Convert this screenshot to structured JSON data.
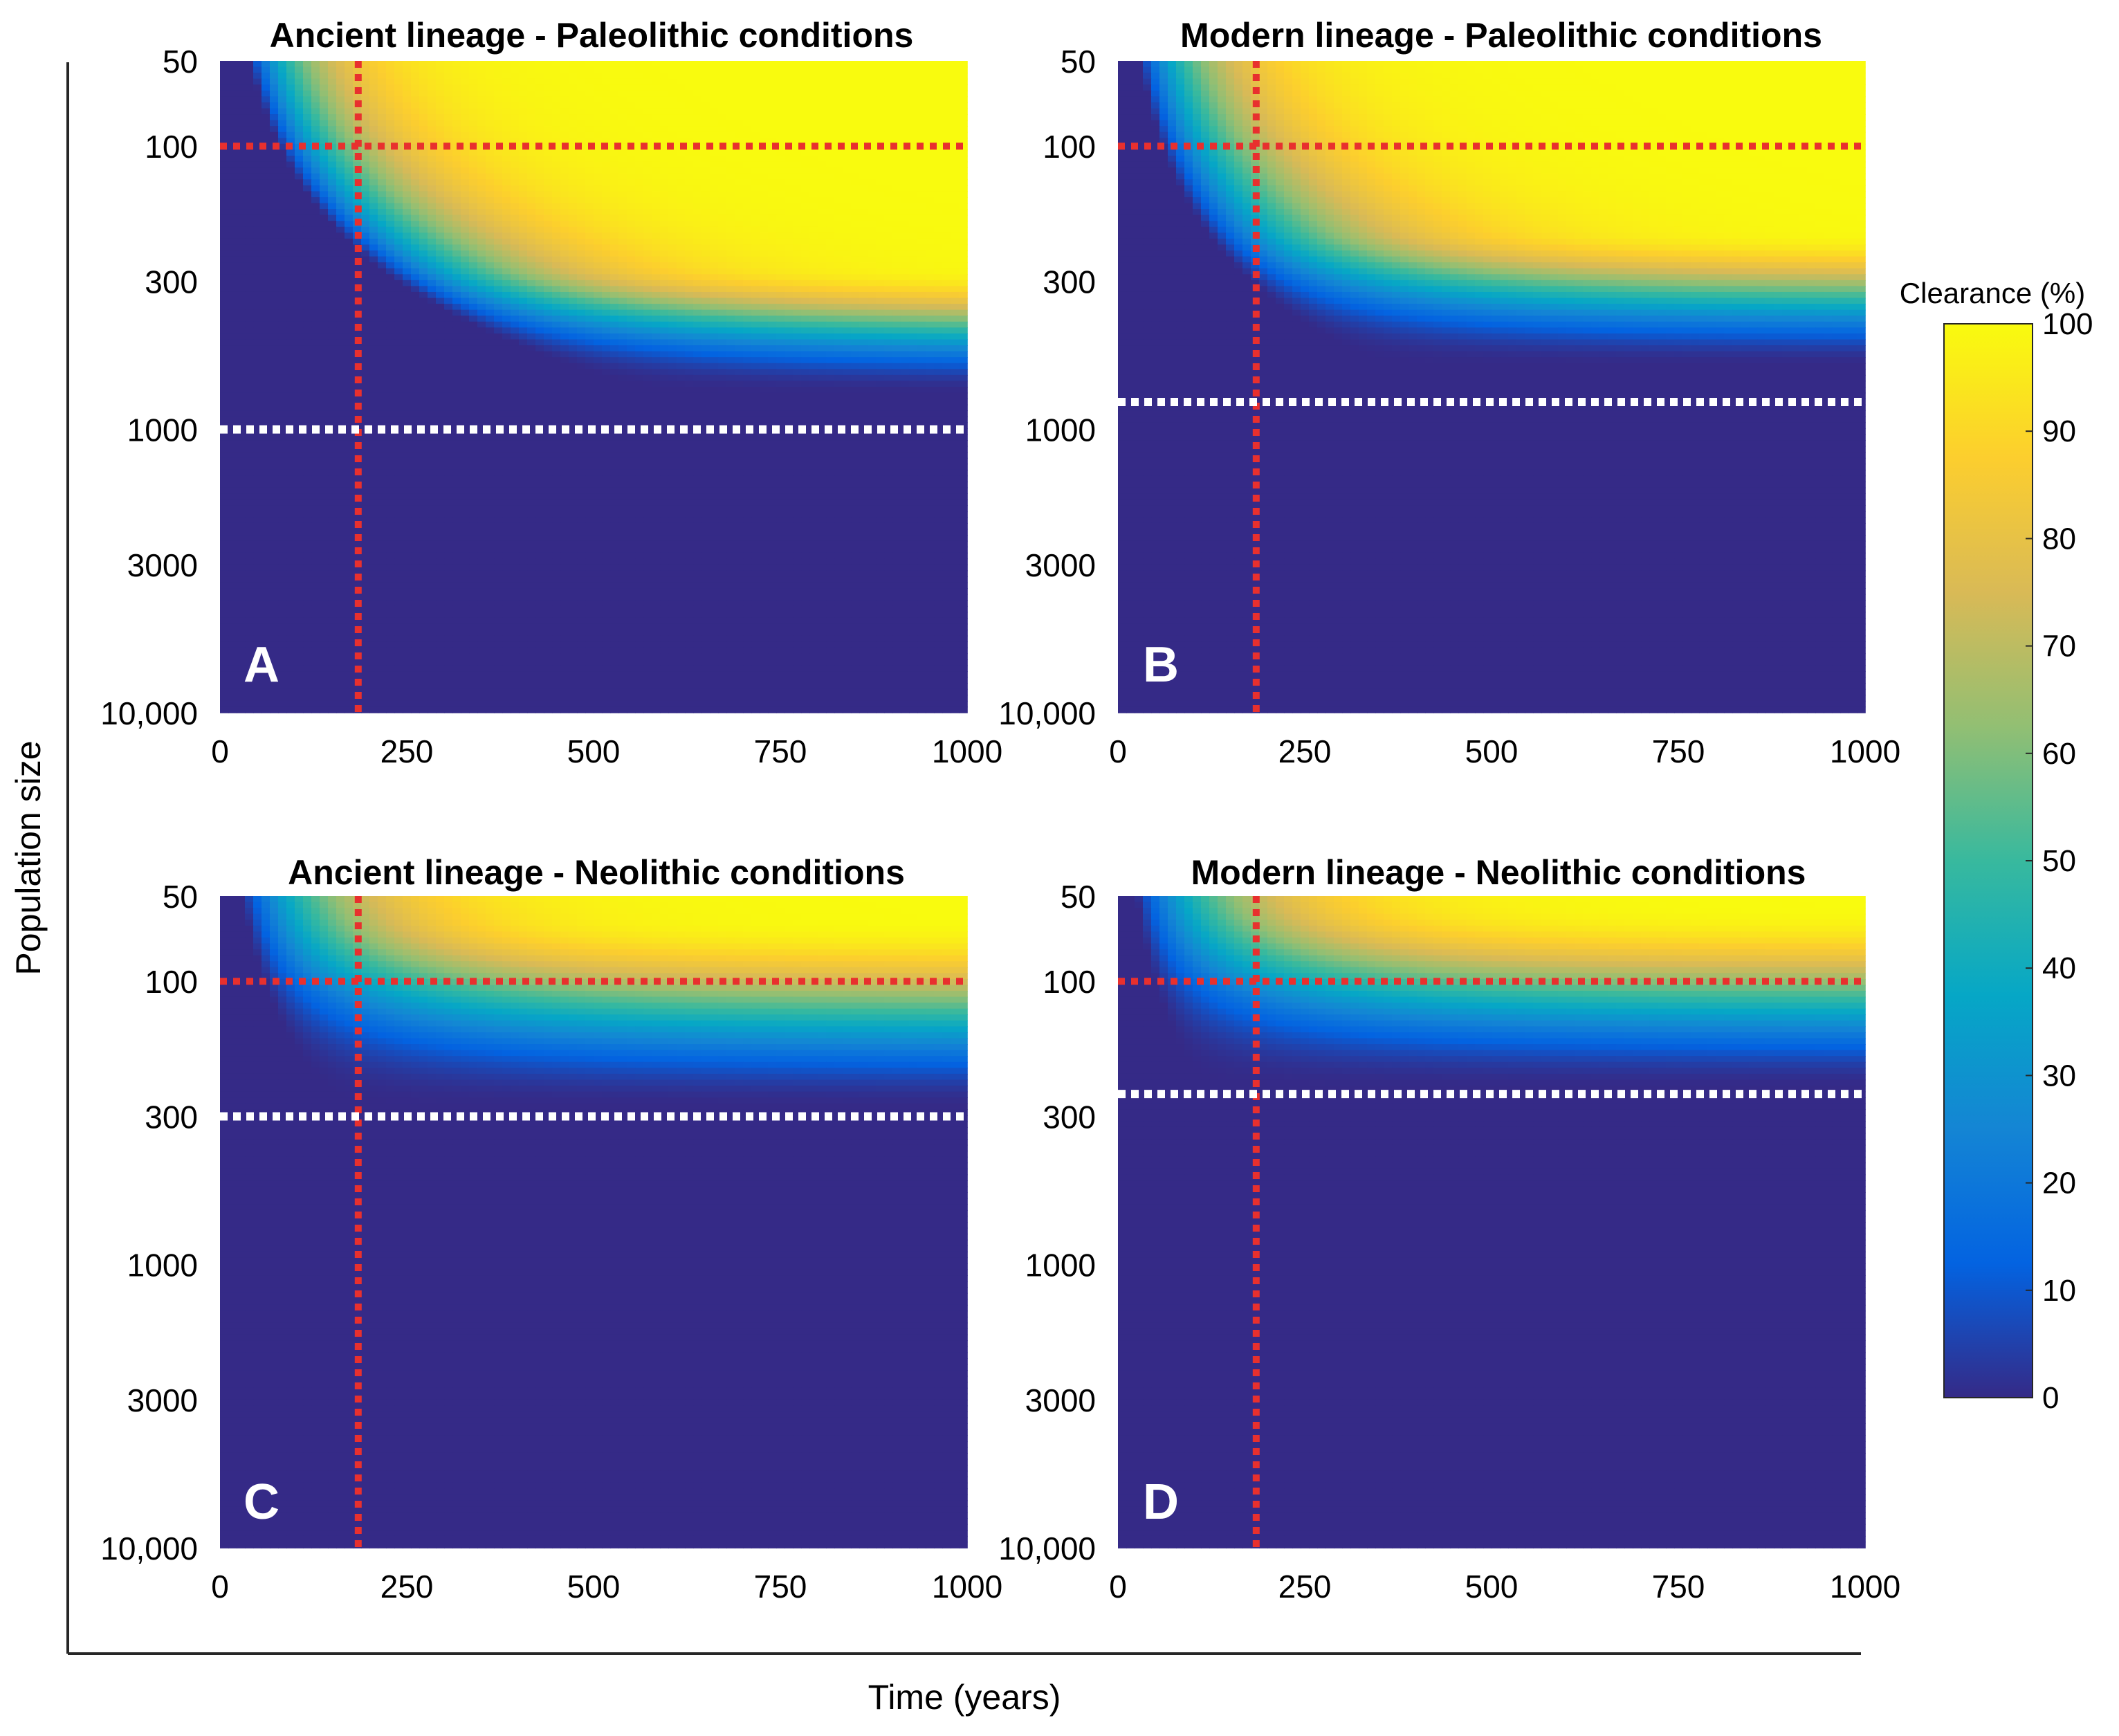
{
  "figure": {
    "ylabel": "Population size",
    "xlabel": "Time (years)",
    "colorbar": {
      "label": "Clearance (%)",
      "ticks": [
        "0",
        "10",
        "20",
        "30",
        "40",
        "50",
        "60",
        "70",
        "80",
        "90",
        "100"
      ],
      "range": [
        0,
        100
      ],
      "colormap": [
        "#352a87",
        "#0363e1",
        "#1485d4",
        "#06a7c6",
        "#38b99e",
        "#92bf73",
        "#d9ba56",
        "#fcce2e",
        "#f9fb0e"
      ]
    }
  },
  "chart_data": [
    {
      "type": "heatmap",
      "panel": "A",
      "title": "Ancient lineage - Paleolithic conditions",
      "xlabel": "Time (years)",
      "ylabel": "Population size",
      "x_ticks": [
        "0",
        "250",
        "500",
        "750",
        "1000"
      ],
      "y_ticks": [
        "50",
        "100",
        "300",
        "1000",
        "3000",
        "10,000"
      ],
      "xlim": [
        0,
        1000
      ],
      "ylim": [
        50,
        10000
      ],
      "yscale": "log",
      "red_vertical_line_x": 185,
      "red_horizontal_line_y": 100,
      "white_threshold_line_y": 1000,
      "clearance_band": {
        "full_clearance_below": 270,
        "half_clearance_at": 420,
        "zero_clearance_above": 750,
        "onset_years": 40
      }
    },
    {
      "type": "heatmap",
      "panel": "B",
      "title": "Modern lineage - Paleolithic conditions",
      "xlabel": "Time (years)",
      "ylabel": "Population size",
      "x_ticks": [
        "0",
        "250",
        "500",
        "750",
        "1000"
      ],
      "y_ticks": [
        "50",
        "100",
        "300",
        "1000",
        "3000",
        "10,000"
      ],
      "xlim": [
        0,
        1000
      ],
      "ylim": [
        50,
        10000
      ],
      "yscale": "log",
      "red_vertical_line_x": 185,
      "red_horizontal_line_y": 100,
      "white_threshold_line_y": 800,
      "clearance_band": {
        "full_clearance_below": 200,
        "half_clearance_at": 320,
        "zero_clearance_above": 600,
        "onset_years": 30
      }
    },
    {
      "type": "heatmap",
      "panel": "C",
      "title": "Ancient lineage - Neolithic conditions",
      "xlabel": "Time (years)",
      "ylabel": "Population size",
      "x_ticks": [
        "0",
        "250",
        "500",
        "750",
        "1000"
      ],
      "y_ticks": [
        "50",
        "100",
        "300",
        "1000",
        "3000",
        "10,000"
      ],
      "xlim": [
        0,
        1000
      ],
      "ylim": [
        50,
        10000
      ],
      "yscale": "log",
      "red_vertical_line_x": 185,
      "red_horizontal_line_y": 100,
      "white_threshold_line_y": 300,
      "clearance_band": {
        "full_clearance_below": 60,
        "half_clearance_at": 140,
        "zero_clearance_above": 280,
        "onset_years": 30
      }
    },
    {
      "type": "heatmap",
      "panel": "D",
      "title": "Modern lineage - Neolithic conditions",
      "xlabel": "Time (years)",
      "ylabel": "Population size",
      "x_ticks": [
        "0",
        "250",
        "500",
        "750",
        "1000"
      ],
      "y_ticks": [
        "50",
        "100",
        "300",
        "1000",
        "3000",
        "10,000"
      ],
      "xlim": [
        0,
        1000
      ],
      "ylim": [
        50,
        10000
      ],
      "yscale": "log",
      "red_vertical_line_x": 185,
      "red_horizontal_line_y": 100,
      "white_threshold_line_y": 250,
      "clearance_band": {
        "full_clearance_below": 55,
        "half_clearance_at": 125,
        "zero_clearance_above": 240,
        "onset_years": 25
      }
    }
  ]
}
